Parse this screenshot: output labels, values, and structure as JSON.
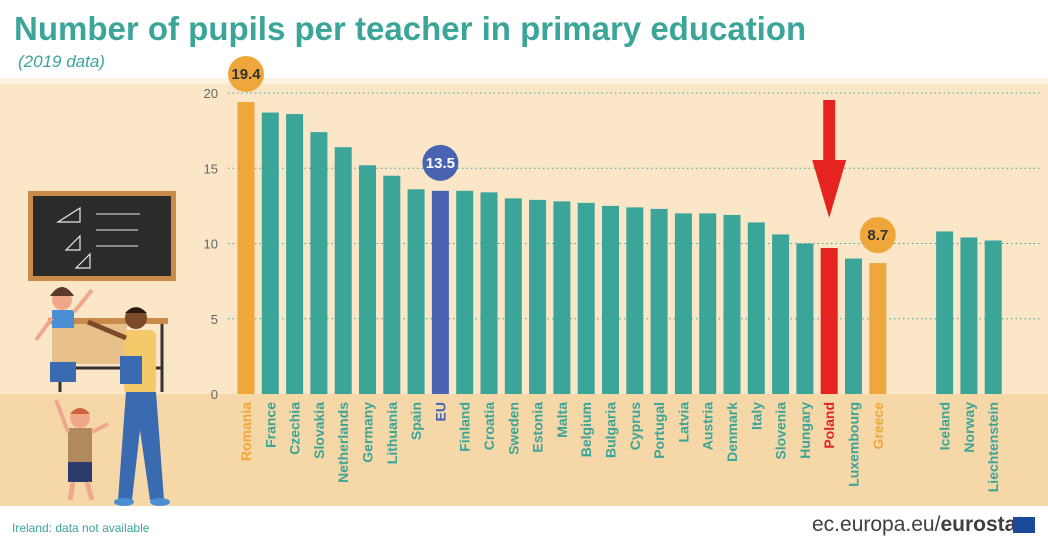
{
  "title": "Number of pupils per teacher in primary education",
  "subtitle": "(2019 data)",
  "footnote": "Ireland: data not available",
  "source": {
    "domain": "ec.europa.eu/",
    "brand": "eurostat"
  },
  "colors": {
    "background": "#fbe6c8",
    "floor": "#f5d7a8",
    "bar_default": "#3aa598",
    "bar_highlight_orange": "#efa63a",
    "bar_eu": "#4a63b0",
    "bar_poland": "#e52421",
    "title": "#3aa598"
  },
  "chart_data": {
    "type": "bar",
    "title": "Number of pupils per teacher in primary education",
    "subtitle": "(2019 data)",
    "xlabel": "",
    "ylabel": "",
    "ylim": [
      0,
      20
    ],
    "yticks": [
      0,
      5,
      10,
      15,
      20
    ],
    "grid": true,
    "categories": [
      "Romania",
      "France",
      "Czechia",
      "Slovakia",
      "Netherlands",
      "Germany",
      "Lithuania",
      "Spain",
      "EU",
      "Finland",
      "Croatia",
      "Sweden",
      "Estonia",
      "Malta",
      "Belgium",
      "Bulgaria",
      "Cyprus",
      "Portugal",
      "Latvia",
      "Austria",
      "Denmark",
      "Italy",
      "Slovenia",
      "Hungary",
      "Poland",
      "Luxembourg",
      "Greece",
      "Iceland",
      "Norway",
      "Liechtenstein"
    ],
    "values": [
      19.4,
      18.7,
      18.6,
      17.4,
      16.4,
      15.2,
      14.5,
      13.6,
      13.5,
      13.5,
      13.4,
      13.0,
      12.9,
      12.8,
      12.7,
      12.5,
      12.4,
      12.3,
      12.0,
      12.0,
      11.9,
      11.4,
      10.6,
      10.0,
      9.7,
      9.0,
      8.7,
      10.8,
      10.4,
      10.2
    ],
    "highlights": {
      "Romania": "orange",
      "EU": "blue",
      "Poland": "red",
      "Greece": "orange"
    },
    "annotations": [
      {
        "category": "Romania",
        "label": "19.4"
      },
      {
        "category": "EU",
        "label": "13.5"
      },
      {
        "category": "Greece",
        "label": "8.7"
      }
    ],
    "arrow_target": "Poland"
  }
}
